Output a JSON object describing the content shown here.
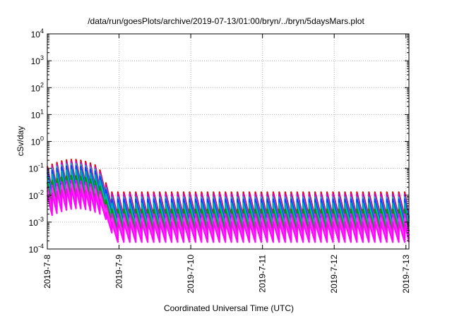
{
  "chart_data": {
    "type": "line",
    "title": "/data/run/goesPlots/archive/2019-07-13/01:00/bryn/../bryn/5daysMars.plot",
    "xlabel": "Coordinated Universal Time (UTC)",
    "ylabel": "cSv/day",
    "x_range": [
      "2019-07-08",
      "2019-07-13 01:00"
    ],
    "ylim": [
      0.0001,
      10000
    ],
    "yscale": "log",
    "grid": true,
    "x_ticks": [
      {
        "date": "2019-07-08",
        "label": "2019-7-8"
      },
      {
        "date": "2019-07-09",
        "label": "2019-7-9"
      },
      {
        "date": "2019-07-10",
        "label": "2019-7-10"
      },
      {
        "date": "2019-07-11",
        "label": "2019-7-11"
      },
      {
        "date": "2019-07-12",
        "label": "2019-7-12"
      },
      {
        "date": "2019-07-13",
        "label": "2019-7-13"
      }
    ],
    "y_ticks": [
      {
        "value": 0.0001,
        "base": "10",
        "exp": "-4"
      },
      {
        "value": 0.001,
        "base": "10",
        "exp": "-3"
      },
      {
        "value": 0.01,
        "base": "10",
        "exp": "-2"
      },
      {
        "value": 0.1,
        "base": "10",
        "exp": "-1"
      },
      {
        "value": 1,
        "base": "10",
        "exp": "0"
      },
      {
        "value": 10,
        "base": "10",
        "exp": "1"
      },
      {
        "value": 100,
        "base": "10",
        "exp": "2"
      },
      {
        "value": 1000,
        "base": "10",
        "exp": "3"
      },
      {
        "value": 10000,
        "base": "10",
        "exp": "4"
      }
    ],
    "pattern": "sawtooth",
    "early_phase_end": "2019-07-08 17:00",
    "series": [
      {
        "color": "#dd0000",
        "peak_early": 0.12,
        "peak_late": 0.013,
        "floor_ratio": 0.12
      },
      {
        "color": "#cc00cc",
        "peak_early": 0.1,
        "peak_late": 0.011,
        "floor_ratio": 0.12
      },
      {
        "color": "#1f9fd8",
        "peak_early": 0.085,
        "peak_late": 0.0085,
        "floor_ratio": 0.13
      },
      {
        "color": "#0040ff",
        "peak_early": 0.07,
        "peak_late": 0.007,
        "floor_ratio": 0.13
      },
      {
        "color": "#00b0b0",
        "peak_early": 0.05,
        "peak_late": 0.005,
        "floor_ratio": 0.14
      },
      {
        "color": "#009000",
        "peak_early": 0.03,
        "peak_late": 0.003,
        "floor_ratio": 0.15
      },
      {
        "color": "#ff00ff",
        "peak_early": 0.02,
        "peak_late": 0.002,
        "floor_ratio": 0.16
      },
      {
        "color": "#ff33ff",
        "peak_early": 0.015,
        "peak_late": 0.0014,
        "floor_ratio": 0.17
      },
      {
        "color": "#ff00ff",
        "peak_early": 0.01,
        "peak_late": 0.001,
        "floor_ratio": 0.18
      }
    ]
  }
}
